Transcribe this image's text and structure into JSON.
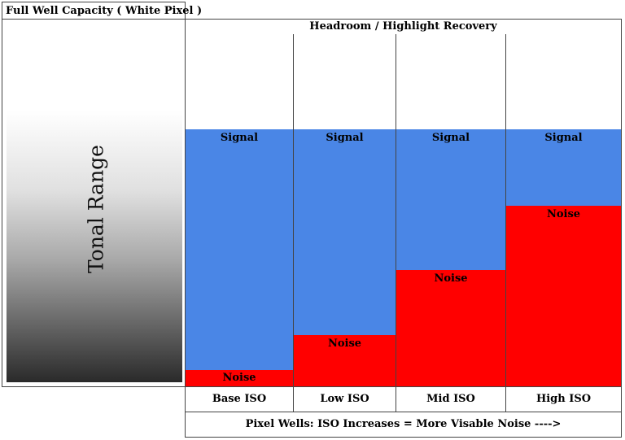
{
  "title": "Full Well Capacity ( White Pixel )",
  "headroom_label": "Headroom / Highlight Recovery",
  "tonal_range_label": "Tonal Range",
  "footer": "Pixel Wells: ISO Increases = More Visable Noise ---->",
  "colors": {
    "signal": "#4a86e6",
    "noise": "#ff0000"
  },
  "columns": [
    {
      "iso": "Base ISO",
      "signal_label": "Signal",
      "noise_label": "Noise",
      "noise_fraction": 0.064
    },
    {
      "iso": "Low ISO",
      "signal_label": "Signal",
      "noise_label": "Noise",
      "noise_fraction": 0.2
    },
    {
      "iso": "Mid ISO",
      "signal_label": "Signal",
      "noise_label": "Noise",
      "noise_fraction": 0.45
    },
    {
      "iso": "High ISO",
      "signal_label": "Signal",
      "noise_label": "Noise",
      "noise_fraction": 0.7
    }
  ]
}
